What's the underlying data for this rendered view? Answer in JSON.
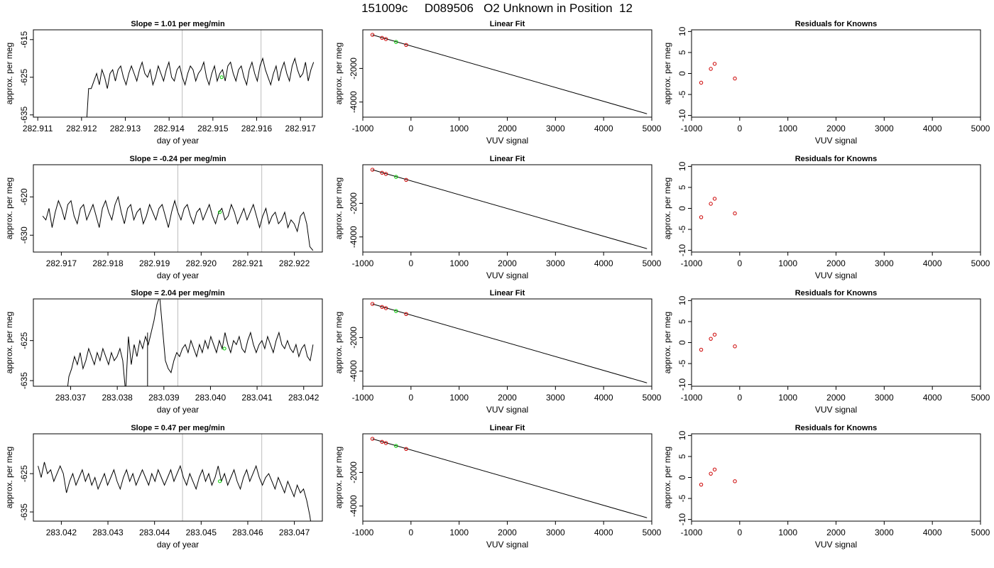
{
  "title": "151009c     D089506   O2 Unknown in Position  12",
  "colors": {
    "trace": "#000000",
    "vline": "#bebebe",
    "unknown": "#00cc00",
    "known": "#cc0000",
    "frame": "#000000"
  },
  "chart_data": [
    {
      "type": "line",
      "title": "Slope =  1.01  per meg/min",
      "xlabel": "day of year",
      "ylabel": "approx. per meg",
      "xlim": [
        282.9109,
        282.9175
      ],
      "ylim": [
        -635.6,
        -612.4
      ],
      "xticks": [
        282.911,
        282.912,
        282.913,
        282.914,
        282.915,
        282.916,
        282.917
      ],
      "xtick_labels": [
        "282.911",
        "282.912",
        "282.913",
        "282.914",
        "282.915",
        "282.916",
        "282.917"
      ],
      "yticks": [
        -615,
        -625,
        -635
      ],
      "ytick_labels": [
        "-615",
        "-625",
        "-635"
      ],
      "vlines": [
        282.9143,
        282.9161
      ],
      "x_start": 282.9121,
      "x_end": 282.9173,
      "y": [
        -640,
        -628,
        -628,
        -626,
        -624,
        -627,
        -623,
        -625,
        -628,
        -624,
        -623,
        -626,
        -623,
        -622,
        -625,
        -627,
        -624,
        -622,
        -624,
        -626,
        -623,
        -621,
        -624,
        -625,
        -623,
        -627,
        -625,
        -622,
        -624,
        -626,
        -623,
        -621,
        -625,
        -626,
        -623,
        -622,
        -625,
        -627,
        -624,
        -622,
        -623,
        -626,
        -624,
        -623,
        -621,
        -625,
        -627,
        -624,
        -622,
        -626,
        -624,
        -623,
        -626,
        -622,
        -621,
        -624,
        -626,
        -623,
        -622,
        -625,
        -627,
        -623,
        -621,
        -624,
        -626,
        -622,
        -620,
        -623,
        -625,
        -627,
        -624,
        -622,
        -626,
        -623,
        -621,
        -624,
        -626,
        -622,
        -620,
        -623,
        -625,
        -624,
        -621,
        -626,
        -623,
        -621
      ],
      "unknown_point": [
        282.9152,
        -625
      ]
    },
    {
      "type": "line",
      "title": "Slope =  -0.24  per meg/min",
      "xlabel": "day of year",
      "ylabel": "approx. per meg",
      "xlim": [
        282.9164,
        282.9226
      ],
      "ylim": [
        -634.4,
        -611.6
      ],
      "xticks": [
        282.917,
        282.918,
        282.919,
        282.92,
        282.921,
        282.922
      ],
      "xtick_labels": [
        "282.917",
        "282.918",
        "282.919",
        "282.920",
        "282.921",
        "282.922"
      ],
      "yticks": [
        -620,
        -630
      ],
      "ytick_labels": [
        "-620",
        "-630"
      ],
      "vlines": [
        282.9195,
        282.9213
      ],
      "x_start": 282.9166,
      "x_end": 282.9224,
      "y": [
        -625,
        -626,
        -623,
        -628,
        -624,
        -621,
        -623,
        -626,
        -622,
        -621,
        -625,
        -627,
        -623,
        -622,
        -626,
        -624,
        -622,
        -625,
        -628,
        -623,
        -621,
        -624,
        -626,
        -622,
        -620,
        -624,
        -627,
        -623,
        -622,
        -626,
        -624,
        -623,
        -627,
        -625,
        -622,
        -624,
        -626,
        -623,
        -622,
        -625,
        -628,
        -624,
        -621,
        -624,
        -626,
        -623,
        -622,
        -625,
        -627,
        -624,
        -623,
        -626,
        -624,
        -622,
        -625,
        -627,
        -624,
        -623,
        -626,
        -625,
        -622,
        -624,
        -627,
        -625,
        -623,
        -626,
        -624,
        -622,
        -625,
        -628,
        -625,
        -623,
        -627,
        -625,
        -624,
        -627,
        -626,
        -624,
        -628,
        -626,
        -627,
        -629,
        -625,
        -624,
        -627,
        -633,
        -634
      ],
      "unknown_point": [
        282.9204,
        -624
      ]
    },
    {
      "type": "line",
      "title": "Slope =  2.04  per meg/min",
      "xlabel": "day of year",
      "ylabel": "approx. per meg",
      "xlim": [
        283.0362,
        283.0424
      ],
      "ylim": [
        -636.4,
        -614.6
      ],
      "xticks": [
        283.037,
        283.038,
        283.039,
        283.04,
        283.041,
        283.042
      ],
      "xtick_labels": [
        "283.037",
        "283.038",
        "283.039",
        "283.040",
        "283.041",
        "283.042"
      ],
      "yticks": [
        -625,
        -635
      ],
      "ytick_labels": [
        "-625",
        "-635"
      ],
      "vlines": [
        283.0393,
        283.0411
      ],
      "x_start": 283.0369,
      "x_end": 283.0422,
      "y": [
        -640,
        -634,
        -632,
        -629,
        -631,
        -628,
        -632,
        -630,
        -627,
        -629,
        -631,
        -628,
        -630,
        -627,
        -629,
        -631,
        -628,
        -630,
        -629,
        -627,
        -630,
        -638,
        -624,
        -631,
        -626,
        -629,
        -625,
        -627,
        -624,
        -626,
        -623,
        -620,
        -616,
        -614,
        -622,
        -630,
        -632,
        -633,
        -630,
        -628,
        -629,
        -627,
        -626,
        -628,
        -625,
        -627,
        -629,
        -626,
        -628,
        -625,
        -627,
        -624,
        -626,
        -628,
        -625,
        -627,
        -623,
        -626,
        -628,
        -625,
        -626,
        -624,
        -627,
        -628,
        -625,
        -623,
        -626,
        -628,
        -626,
        -625,
        -627,
        -624,
        -626,
        -628,
        -625,
        -623,
        -626,
        -627,
        -625,
        -627,
        -628,
        -626,
        -629,
        -627,
        -626,
        -629,
        -630,
        -626
      ],
      "spikes": [
        [
          283.0385,
          -640
        ],
        [
          283.03865,
          -623
        ]
      ],
      "unknown_point": [
        283.0403,
        -627
      ]
    },
    {
      "type": "line",
      "title": "Slope =  0.47  per meg/min",
      "xlabel": "day of year",
      "ylabel": "approx. per meg",
      "xlim": [
        283.0414,
        283.0476
      ],
      "ylim": [
        -637.4,
        -614.6
      ],
      "xticks": [
        283.042,
        283.043,
        283.044,
        283.045,
        283.046,
        283.047
      ],
      "xtick_labels": [
        "283.042",
        "283.043",
        "283.044",
        "283.045",
        "283.046",
        "283.047"
      ],
      "yticks": [
        -625,
        -635
      ],
      "ytick_labels": [
        "-625",
        "-635"
      ],
      "vlines": [
        283.0446,
        283.0463
      ],
      "x_start": 283.0415,
      "x_end": 283.0474,
      "y": [
        -623,
        -626,
        -622,
        -625,
        -624,
        -627,
        -625,
        -623,
        -625,
        -630,
        -627,
        -625,
        -628,
        -626,
        -624,
        -627,
        -625,
        -628,
        -626,
        -629,
        -627,
        -625,
        -628,
        -626,
        -624,
        -627,
        -629,
        -626,
        -624,
        -627,
        -625,
        -628,
        -626,
        -624,
        -626,
        -628,
        -625,
        -627,
        -624,
        -626,
        -628,
        -626,
        -624,
        -627,
        -625,
        -623,
        -626,
        -628,
        -625,
        -627,
        -629,
        -626,
        -624,
        -627,
        -625,
        -628,
        -626,
        -623,
        -627,
        -625,
        -628,
        -626,
        -624,
        -627,
        -629,
        -626,
        -624,
        -627,
        -625,
        -623,
        -626,
        -628,
        -626,
        -625,
        -627,
        -629,
        -626,
        -628,
        -630,
        -627,
        -629,
        -631,
        -628,
        -630,
        -629,
        -632,
        -636,
        -642
      ],
      "unknown_point": [
        283.0454,
        -627
      ]
    },
    {
      "type": "scatter",
      "title": "Linear Fit",
      "xlabel": "VUV signal",
      "ylabel": "approx. per meg",
      "xlim": [
        -1000,
        5000
      ],
      "ylim": [
        -4900,
        300
      ],
      "xticks": [
        -1000,
        0,
        1000,
        2000,
        3000,
        4000,
        5000
      ],
      "xtick_labels": [
        "-1000",
        "0",
        "1000",
        "2000",
        "3000",
        "4000",
        "5000"
      ],
      "yticks": [
        -2000,
        -4000
      ],
      "ytick_labels": [
        "-2000",
        "-4000"
      ],
      "fit_line": [
        [
          -800,
          0
        ],
        [
          4900,
          -4700
        ]
      ],
      "known_points": [
        [
          -800,
          0
        ],
        [
          -600,
          -180
        ],
        [
          -520,
          -250
        ],
        [
          -100,
          -600
        ]
      ],
      "unknown_point": [
        -310,
        -420
      ]
    },
    {
      "type": "scatter",
      "title": "Linear Fit",
      "xlabel": "VUV signal",
      "ylabel": "approx. per meg",
      "xlim": [
        -1000,
        5000
      ],
      "ylim": [
        -4900,
        300
      ],
      "xticks": [
        -1000,
        0,
        1000,
        2000,
        3000,
        4000,
        5000
      ],
      "xtick_labels": [
        "-1000",
        "0",
        "1000",
        "2000",
        "3000",
        "4000",
        "5000"
      ],
      "yticks": [
        -2000,
        -4000
      ],
      "ytick_labels": [
        "-2000",
        "-4000"
      ],
      "fit_line": [
        [
          -800,
          0
        ],
        [
          4900,
          -4700
        ]
      ],
      "known_points": [
        [
          -800,
          0
        ],
        [
          -600,
          -180
        ],
        [
          -520,
          -250
        ],
        [
          -100,
          -600
        ]
      ],
      "unknown_point": [
        -310,
        -420
      ]
    },
    {
      "type": "scatter",
      "title": "Linear Fit",
      "xlabel": "VUV signal",
      "ylabel": "approx. per meg",
      "xlim": [
        -1000,
        5000
      ],
      "ylim": [
        -4900,
        300
      ],
      "xticks": [
        -1000,
        0,
        1000,
        2000,
        3000,
        4000,
        5000
      ],
      "xtick_labels": [
        "-1000",
        "0",
        "1000",
        "2000",
        "3000",
        "4000",
        "5000"
      ],
      "yticks": [
        -2000,
        -4000
      ],
      "ytick_labels": [
        "-2000",
        "-4000"
      ],
      "fit_line": [
        [
          -800,
          0
        ],
        [
          4900,
          -4700
        ]
      ],
      "known_points": [
        [
          -800,
          0
        ],
        [
          -600,
          -180
        ],
        [
          -520,
          -250
        ],
        [
          -100,
          -600
        ]
      ],
      "unknown_point": [
        -310,
        -420
      ]
    },
    {
      "type": "scatter",
      "title": "Linear Fit",
      "xlabel": "VUV signal",
      "ylabel": "approx. per meg",
      "xlim": [
        -1000,
        5000
      ],
      "ylim": [
        -4900,
        300
      ],
      "xticks": [
        -1000,
        0,
        1000,
        2000,
        3000,
        4000,
        5000
      ],
      "xtick_labels": [
        "-1000",
        "0",
        "1000",
        "2000",
        "3000",
        "4000",
        "5000"
      ],
      "yticks": [
        -2000,
        -4000
      ],
      "ytick_labels": [
        "-2000",
        "-4000"
      ],
      "fit_line": [
        [
          -800,
          0
        ],
        [
          4900,
          -4700
        ]
      ],
      "known_points": [
        [
          -800,
          0
        ],
        [
          -600,
          -180
        ],
        [
          -520,
          -250
        ],
        [
          -100,
          -600
        ]
      ],
      "unknown_point": [
        -310,
        -420
      ]
    },
    {
      "type": "scatter",
      "title": "Residuals for Knowns",
      "xlabel": "VUV signal",
      "ylabel": "approx. per meg",
      "xlim": [
        -1000,
        5000
      ],
      "ylim": [
        -10.4,
        10.4
      ],
      "xticks": [
        -1000,
        0,
        1000,
        2000,
        3000,
        4000,
        5000
      ],
      "xtick_labels": [
        "-1000",
        "0",
        "1000",
        "2000",
        "3000",
        "4000",
        "5000"
      ],
      "yticks": [
        10,
        5,
        0,
        -5,
        -10
      ],
      "ytick_labels": [
        "10",
        "5",
        "0",
        "-5",
        "-10"
      ],
      "known_points": [
        [
          -800,
          -2.2
        ],
        [
          -600,
          1.1
        ],
        [
          -520,
          2.3
        ],
        [
          -100,
          -1.2
        ]
      ]
    },
    {
      "type": "scatter",
      "title": "Residuals for Knowns",
      "xlabel": "VUV signal",
      "ylabel": "approx. per meg",
      "xlim": [
        -1000,
        5000
      ],
      "ylim": [
        -10.4,
        10.4
      ],
      "xticks": [
        -1000,
        0,
        1000,
        2000,
        3000,
        4000,
        5000
      ],
      "xtick_labels": [
        "-1000",
        "0",
        "1000",
        "2000",
        "3000",
        "4000",
        "5000"
      ],
      "yticks": [
        10,
        5,
        0,
        -5,
        -10
      ],
      "ytick_labels": [
        "10",
        "5",
        "0",
        "-5",
        "-10"
      ],
      "known_points": [
        [
          -800,
          -2.1
        ],
        [
          -600,
          1.1
        ],
        [
          -520,
          2.3
        ],
        [
          -100,
          -1.2
        ]
      ]
    },
    {
      "type": "scatter",
      "title": "Residuals for Knowns",
      "xlabel": "VUV signal",
      "ylabel": "approx. per meg",
      "xlim": [
        -1000,
        5000
      ],
      "ylim": [
        -10.4,
        10.4
      ],
      "xticks": [
        -1000,
        0,
        1000,
        2000,
        3000,
        4000,
        5000
      ],
      "xtick_labels": [
        "-1000",
        "0",
        "1000",
        "2000",
        "3000",
        "4000",
        "5000"
      ],
      "yticks": [
        10,
        5,
        0,
        -5,
        -10
      ],
      "ytick_labels": [
        "10",
        "5",
        "0",
        "-5",
        "-10"
      ],
      "known_points": [
        [
          -800,
          -1.7
        ],
        [
          -600,
          0.9
        ],
        [
          -520,
          1.9
        ],
        [
          -100,
          -0.9
        ]
      ]
    },
    {
      "type": "scatter",
      "title": "Residuals for Knowns",
      "xlabel": "VUV signal",
      "ylabel": "approx. per meg",
      "xlim": [
        -1000,
        5000
      ],
      "ylim": [
        -10.4,
        10.4
      ],
      "xticks": [
        -1000,
        0,
        1000,
        2000,
        3000,
        4000,
        5000
      ],
      "xtick_labels": [
        "-1000",
        "0",
        "1000",
        "2000",
        "3000",
        "4000",
        "5000"
      ],
      "yticks": [
        10,
        5,
        0,
        -5,
        -10
      ],
      "ytick_labels": [
        "10",
        "5",
        "0",
        "-5",
        "-10"
      ],
      "known_points": [
        [
          -800,
          -1.7
        ],
        [
          -600,
          0.9
        ],
        [
          -520,
          1.9
        ],
        [
          -100,
          -0.9
        ]
      ]
    }
  ]
}
